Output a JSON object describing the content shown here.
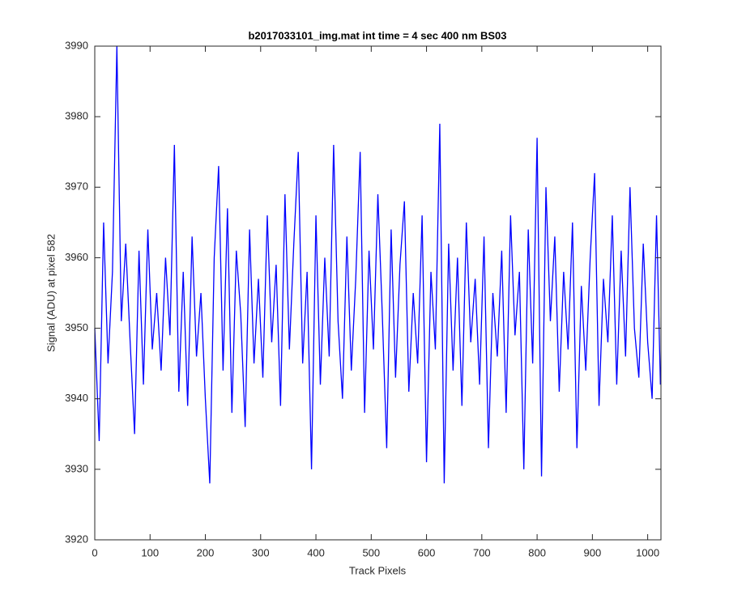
{
  "chart_data": {
    "type": "line",
    "title": "b2017033101_img.mat int time = 4 sec  400 nm BS03",
    "x_label": "Track Pixels",
    "y_label": "Signal (ADU) at pixel 582",
    "xlim": [
      0,
      1024
    ],
    "ylim": [
      3920,
      3990
    ],
    "xticks": [
      0,
      100,
      200,
      300,
      400,
      500,
      600,
      700,
      800,
      900,
      1000
    ],
    "yticks": [
      3920,
      3930,
      3940,
      3950,
      3960,
      3970,
      3980,
      3990
    ],
    "grid": false,
    "series": [
      {
        "color": "#0000ff",
        "x": [
          0,
          8,
          16,
          24,
          32,
          40,
          48,
          56,
          64,
          72,
          80,
          88,
          96,
          104,
          112,
          120,
          128,
          136,
          144,
          152,
          160,
          168,
          176,
          184,
          192,
          200,
          208,
          216,
          224,
          232,
          240,
          248,
          256,
          264,
          272,
          280,
          288,
          296,
          304,
          312,
          320,
          328,
          336,
          344,
          352,
          360,
          368,
          376,
          384,
          392,
          400,
          408,
          416,
          424,
          432,
          440,
          448,
          456,
          464,
          472,
          480,
          488,
          496,
          504,
          512,
          520,
          528,
          536,
          544,
          552,
          560,
          568,
          576,
          584,
          592,
          600,
          608,
          616,
          624,
          632,
          640,
          648,
          656,
          664,
          672,
          680,
          688,
          696,
          704,
          712,
          720,
          728,
          736,
          744,
          752,
          760,
          768,
          776,
          784,
          792,
          800,
          808,
          816,
          824,
          832,
          840,
          848,
          856,
          864,
          872,
          880,
          888,
          896,
          904,
          912,
          920,
          928,
          936,
          944,
          952,
          960,
          968,
          976,
          984,
          992,
          1000,
          1008,
          1016,
          1023
        ],
        "values": [
          3950,
          3934,
          3965,
          3945,
          3958,
          3990,
          3951,
          3962,
          3948,
          3935,
          3961,
          3942,
          3964,
          3947,
          3955,
          3944,
          3960,
          3949,
          3976,
          3941,
          3958,
          3939,
          3963,
          3946,
          3955,
          3940,
          3928,
          3960,
          3973,
          3944,
          3967,
          3938,
          3961,
          3952,
          3936,
          3964,
          3945,
          3957,
          3943,
          3966,
          3948,
          3959,
          3939,
          3969,
          3947,
          3962,
          3975,
          3945,
          3958,
          3930,
          3966,
          3942,
          3960,
          3946,
          3976,
          3951,
          3940,
          3963,
          3944,
          3957,
          3975,
          3938,
          3961,
          3947,
          3969,
          3952,
          3933,
          3964,
          3943,
          3959,
          3968,
          3941,
          3955,
          3945,
          3966,
          3931,
          3958,
          3947,
          3979,
          3928,
          3962,
          3944,
          3960,
          3939,
          3965,
          3948,
          3957,
          3942,
          3963,
          3933,
          3955,
          3946,
          3961,
          3938,
          3966,
          3949,
          3958,
          3930,
          3964,
          3945,
          3977,
          3929,
          3970,
          3951,
          3963,
          3941,
          3958,
          3947,
          3965,
          3933,
          3956,
          3944,
          3960,
          3972,
          3939,
          3957,
          3948,
          3966,
          3942,
          3961,
          3946,
          3970,
          3950,
          3943,
          3962,
          3948,
          3940,
          3966,
          3942
        ]
      }
    ]
  }
}
